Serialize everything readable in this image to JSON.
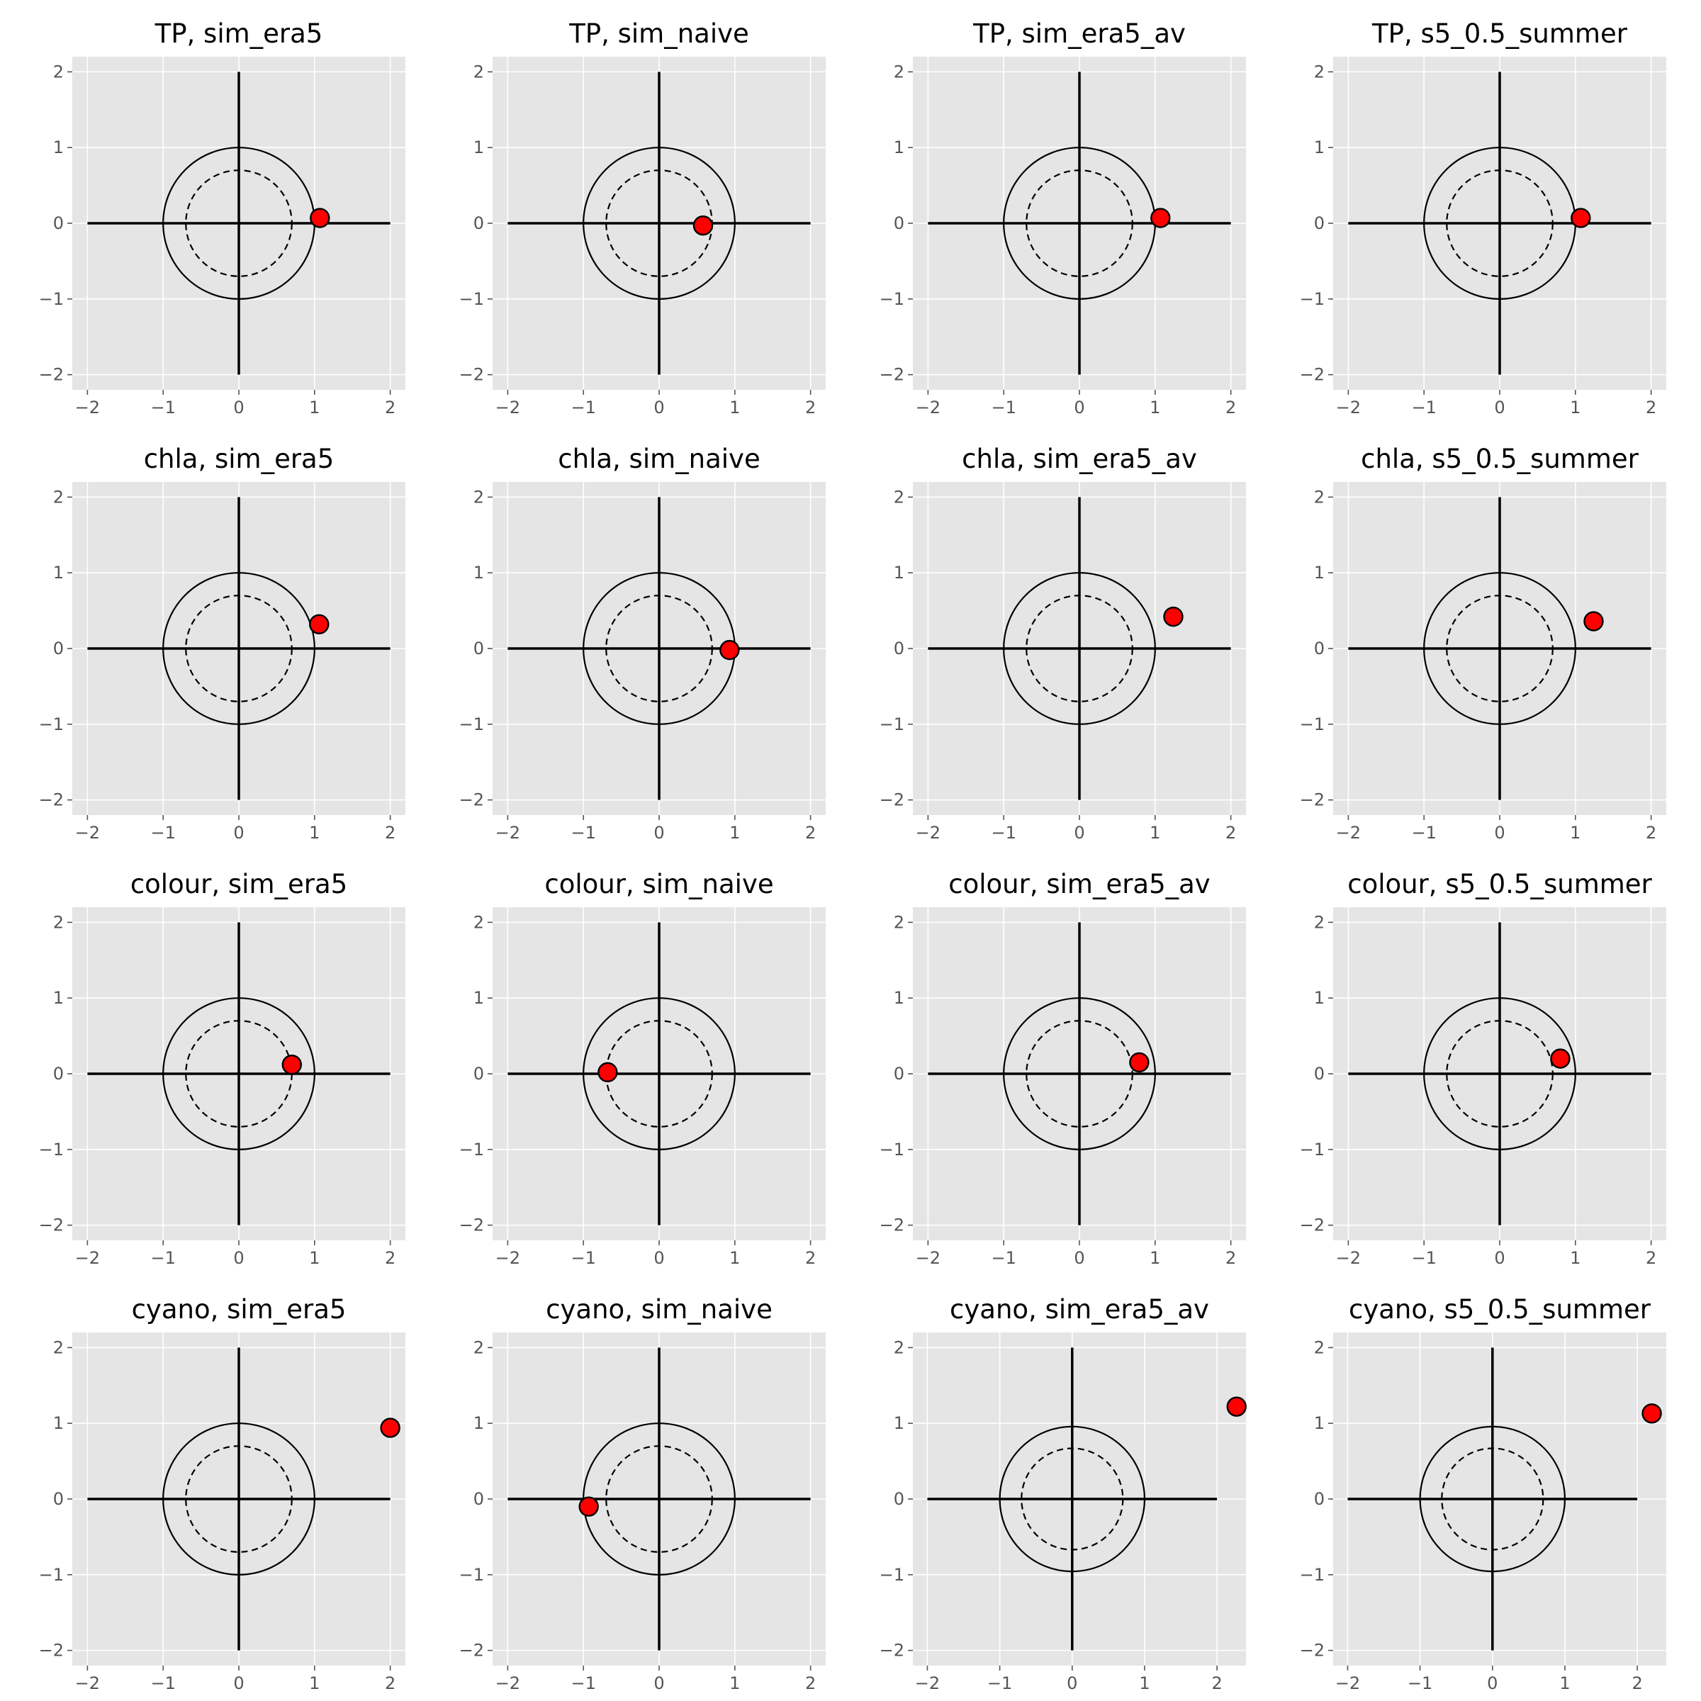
{
  "colors": {
    "marker": "#ff0000",
    "axes_background": "#e5e5e5",
    "grid": "#ffffff"
  },
  "chart_data": [
    {
      "type": "scatter",
      "title": "TP, sim_era5",
      "x": [
        1.07
      ],
      "y": [
        0.07
      ],
      "xlim": [
        -2.2,
        2.2
      ],
      "ylim": [
        -2.2,
        2.2
      ],
      "xticks": [
        "−2",
        "−1",
        "0",
        "1",
        "2"
      ],
      "yticks": [
        "−2",
        "−1",
        "0",
        "1",
        "2"
      ],
      "grid": true
    },
    {
      "type": "scatter",
      "title": "TP, sim_naive",
      "x": [
        0.58
      ],
      "y": [
        -0.03
      ],
      "xlim": [
        -2.2,
        2.2
      ],
      "ylim": [
        -2.2,
        2.2
      ],
      "xticks": [
        "−2",
        "−1",
        "0",
        "1",
        "2"
      ],
      "yticks": [
        "−2",
        "−1",
        "0",
        "1",
        "2"
      ],
      "grid": true
    },
    {
      "type": "scatter",
      "title": "TP, sim_era5_av",
      "x": [
        1.07
      ],
      "y": [
        0.07
      ],
      "xlim": [
        -2.2,
        2.2
      ],
      "ylim": [
        -2.2,
        2.2
      ],
      "xticks": [
        "−2",
        "−1",
        "0",
        "1",
        "2"
      ],
      "yticks": [
        "−2",
        "−1",
        "0",
        "1",
        "2"
      ],
      "grid": true
    },
    {
      "type": "scatter",
      "title": "TP, s5_0.5_summer",
      "x": [
        1.07
      ],
      "y": [
        0.07
      ],
      "xlim": [
        -2.2,
        2.2
      ],
      "ylim": [
        -2.2,
        2.2
      ],
      "xticks": [
        "−2",
        "−1",
        "0",
        "1",
        "2"
      ],
      "yticks": [
        "−2",
        "−1",
        "0",
        "1",
        "2"
      ],
      "grid": true
    },
    {
      "type": "scatter",
      "title": "chla, sim_era5",
      "x": [
        1.06
      ],
      "y": [
        0.32
      ],
      "xlim": [
        -2.2,
        2.2
      ],
      "ylim": [
        -2.2,
        2.2
      ],
      "xticks": [
        "−2",
        "−1",
        "0",
        "1",
        "2"
      ],
      "yticks": [
        "−2",
        "−1",
        "0",
        "1",
        "2"
      ],
      "grid": true
    },
    {
      "type": "scatter",
      "title": "chla, sim_naive",
      "x": [
        0.93
      ],
      "y": [
        -0.02
      ],
      "xlim": [
        -2.2,
        2.2
      ],
      "ylim": [
        -2.2,
        2.2
      ],
      "xticks": [
        "−2",
        "−1",
        "0",
        "1",
        "2"
      ],
      "yticks": [
        "−2",
        "−1",
        "0",
        "1",
        "2"
      ],
      "grid": true
    },
    {
      "type": "scatter",
      "title": "chla, sim_era5_av",
      "x": [
        1.24
      ],
      "y": [
        0.42
      ],
      "xlim": [
        -2.2,
        2.2
      ],
      "ylim": [
        -2.2,
        2.2
      ],
      "xticks": [
        "−2",
        "−1",
        "0",
        "1",
        "2"
      ],
      "yticks": [
        "−2",
        "−1",
        "0",
        "1",
        "2"
      ],
      "grid": true
    },
    {
      "type": "scatter",
      "title": "chla, s5_0.5_summer",
      "x": [
        1.24
      ],
      "y": [
        0.36
      ],
      "xlim": [
        -2.2,
        2.2
      ],
      "ylim": [
        -2.2,
        2.2
      ],
      "xticks": [
        "−2",
        "−1",
        "0",
        "1",
        "2"
      ],
      "yticks": [
        "−2",
        "−1",
        "0",
        "1",
        "2"
      ],
      "grid": true
    },
    {
      "type": "scatter",
      "title": "colour, sim_era5",
      "x": [
        0.7
      ],
      "y": [
        0.12
      ],
      "xlim": [
        -2.2,
        2.2
      ],
      "ylim": [
        -2.2,
        2.2
      ],
      "xticks": [
        "−2",
        "−1",
        "0",
        "1",
        "2"
      ],
      "yticks": [
        "−2",
        "−1",
        "0",
        "1",
        "2"
      ],
      "grid": true
    },
    {
      "type": "scatter",
      "title": "colour, sim_naive",
      "x": [
        -0.68
      ],
      "y": [
        0.02
      ],
      "xlim": [
        -2.2,
        2.2
      ],
      "ylim": [
        -2.2,
        2.2
      ],
      "xticks": [
        "−2",
        "−1",
        "0",
        "1",
        "2"
      ],
      "yticks": [
        "−2",
        "−1",
        "0",
        "1",
        "2"
      ],
      "grid": true
    },
    {
      "type": "scatter",
      "title": "colour, sim_era5_av",
      "x": [
        0.79
      ],
      "y": [
        0.15
      ],
      "xlim": [
        -2.2,
        2.2
      ],
      "ylim": [
        -2.2,
        2.2
      ],
      "xticks": [
        "−2",
        "−1",
        "0",
        "1",
        "2"
      ],
      "yticks": [
        "−2",
        "−1",
        "0",
        "1",
        "2"
      ],
      "grid": true
    },
    {
      "type": "scatter",
      "title": "colour, s5_0.5_summer",
      "x": [
        0.8
      ],
      "y": [
        0.2
      ],
      "xlim": [
        -2.2,
        2.2
      ],
      "ylim": [
        -2.2,
        2.2
      ],
      "xticks": [
        "−2",
        "−1",
        "0",
        "1",
        "2"
      ],
      "yticks": [
        "−2",
        "−1",
        "0",
        "1",
        "2"
      ],
      "grid": true
    },
    {
      "type": "scatter",
      "title": "cyano, sim_era5",
      "x": [
        2.0
      ],
      "y": [
        0.94
      ],
      "xlim": [
        -2.2,
        2.2
      ],
      "ylim": [
        -2.2,
        2.2
      ],
      "xticks": [
        "−2",
        "−1",
        "0",
        "1",
        "2"
      ],
      "yticks": [
        "−2",
        "−1",
        "0",
        "1",
        "2"
      ],
      "grid": true
    },
    {
      "type": "scatter",
      "title": "cyano, sim_naive",
      "x": [
        -0.93
      ],
      "y": [
        -0.1
      ],
      "xlim": [
        -2.2,
        2.2
      ],
      "ylim": [
        -2.2,
        2.2
      ],
      "xticks": [
        "−2",
        "−1",
        "0",
        "1",
        "2"
      ],
      "yticks": [
        "−2",
        "−1",
        "0",
        "1",
        "2"
      ],
      "grid": true
    },
    {
      "type": "scatter",
      "title": "cyano, sim_era5_av",
      "x": [
        2.27
      ],
      "y": [
        1.22
      ],
      "xlim": [
        -2.2,
        2.4
      ],
      "ylim": [
        -2.2,
        2.2
      ],
      "xticks": [
        "−2",
        "−1",
        "0",
        "1",
        "2"
      ],
      "yticks": [
        "−2",
        "−1",
        "0",
        "1",
        "2"
      ],
      "grid": true
    },
    {
      "type": "scatter",
      "title": "cyano, s5_0.5_summer",
      "x": [
        2.2
      ],
      "y": [
        1.13
      ],
      "xlim": [
        -2.2,
        2.4
      ],
      "ylim": [
        -2.2,
        2.2
      ],
      "xticks": [
        "−2",
        "−1",
        "0",
        "1",
        "2"
      ],
      "yticks": [
        "−2",
        "−1",
        "0",
        "1",
        "2"
      ],
      "grid": true
    }
  ]
}
